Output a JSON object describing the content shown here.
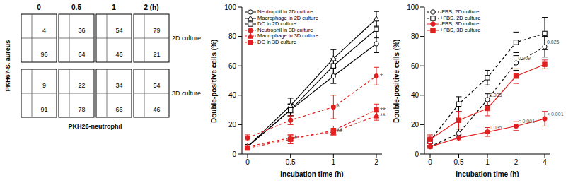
{
  "chart_data": [
    {
      "type": "quadrant",
      "columns": [
        "0",
        "0.5",
        "1",
        "2 (h)"
      ],
      "rows": [
        "2D culture",
        "3D culture"
      ],
      "x_label": "PKH26-neutrophil",
      "y_label": "PKH67-S. aureus",
      "upper_right": [
        [
          4,
          36,
          54,
          79
        ],
        [
          9,
          22,
          34,
          54
        ]
      ],
      "lower_right": [
        [
          96,
          64,
          46,
          21
        ],
        [
          91,
          78,
          66,
          46
        ]
      ]
    },
    {
      "type": "line",
      "categories": [
        "0",
        "0.5",
        "1",
        "2"
      ],
      "xlabel": "Incubation time (h)",
      "ylabel": "Double-positive cells (%)",
      "ylim": [
        0,
        100
      ],
      "yticks": [
        0,
        20,
        40,
        60,
        80,
        100
      ],
      "grid": false,
      "legend": "upper left",
      "series": [
        {
          "name": "Neutrophil in 2D culture",
          "color": "#000000",
          "marker": "open_circle",
          "line_style": "solid",
          "values": [
            5,
            30,
            53,
            75
          ],
          "errors": [
            1,
            4,
            5,
            6
          ],
          "significance": [
            null,
            null,
            null,
            null
          ]
        },
        {
          "name": "Macrophage in 2D culture",
          "color": "#000000",
          "marker": "open_triangle",
          "line_style": "solid",
          "values": [
            5,
            33,
            65,
            92
          ],
          "errors": [
            1,
            5,
            6,
            5
          ],
          "significance": [
            null,
            null,
            null,
            null
          ]
        },
        {
          "name": "DC in 2D culture",
          "color": "#000000",
          "marker": "open_square",
          "line_style": "solid",
          "values": [
            5,
            30,
            60,
            85
          ],
          "errors": [
            1,
            4,
            5,
            6
          ],
          "significance": [
            null,
            null,
            null,
            null
          ]
        },
        {
          "name": "Neutrophil in 3D culture",
          "color": "#e02020",
          "marker": "circle",
          "line_style": "dashed",
          "values": [
            11,
            23,
            32,
            53
          ],
          "errors": [
            2,
            3,
            8,
            6
          ],
          "significance": [
            null,
            null,
            "*",
            "*"
          ]
        },
        {
          "name": "Macrophage in 3D culture",
          "color": "#e02020",
          "marker": "triangle",
          "line_style": "dashed",
          "values": [
            5,
            11,
            15,
            26
          ],
          "errors": [
            1,
            2,
            2,
            3
          ],
          "significance": [
            null,
            "*",
            "**",
            "**"
          ]
        },
        {
          "name": "DC in 3D culture",
          "color": "#e02020",
          "marker": "square",
          "line_style": "dashed",
          "values": [
            4,
            10,
            16,
            30
          ],
          "errors": [
            1,
            3,
            3,
            4
          ],
          "significance": [
            null,
            "*",
            "**",
            "**"
          ]
        }
      ]
    },
    {
      "type": "line",
      "categories": [
        "0",
        "0.5",
        "1",
        "2",
        "4"
      ],
      "xlabel": "Incubation time (h)",
      "ylabel": "Double-positive cells (%)",
      "ylim": [
        0,
        100
      ],
      "yticks": [
        0,
        20,
        40,
        60,
        80,
        100
      ],
      "grid": false,
      "legend": "upper left",
      "series": [
        {
          "name": "-FBS, 2D culture",
          "color": "#000000",
          "marker": "open_circle",
          "line_style": "dashed",
          "values": [
            5,
            14,
            37,
            62,
            73
          ],
          "errors": [
            1,
            3,
            4,
            5,
            7
          ],
          "significance": [
            null,
            null,
            "0.035",
            "0.009",
            "0.025"
          ]
        },
        {
          "name": "+FBS, 2D culture",
          "color": "#000000",
          "marker": "open_square",
          "line_style": "dashed",
          "values": [
            9,
            34,
            52,
            76,
            82
          ],
          "errors": [
            2,
            5,
            5,
            7,
            11
          ],
          "significance": [
            null,
            null,
            null,
            null,
            null
          ]
        },
        {
          "name": "-FBS, 3D culture",
          "color": "#e02020",
          "marker": "circle",
          "line_style": "solid",
          "values": [
            5,
            11,
            15,
            19,
            24
          ],
          "errors": [
            1,
            2,
            3,
            3,
            5
          ],
          "significance": [
            null,
            null,
            "0.035",
            "< 0.001",
            "< 0.001"
          ]
        },
        {
          "name": "+FBS, 3D culture",
          "color": "#e02020",
          "marker": "square",
          "line_style": "solid",
          "values": [
            10,
            23,
            31,
            53,
            61
          ],
          "errors": [
            3,
            6,
            5,
            5,
            3
          ],
          "significance": [
            null,
            null,
            null,
            null,
            null
          ]
        }
      ]
    }
  ]
}
